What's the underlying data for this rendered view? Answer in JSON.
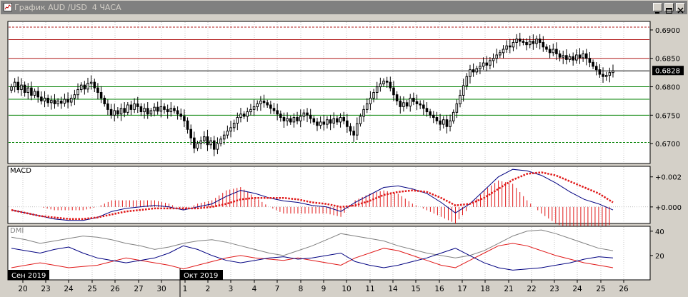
{
  "window": {
    "title": "График AUD /USD  4 ЧАСА"
  },
  "colors": {
    "background": "#ffffff",
    "candle": "#000000",
    "resistance": "#b01818",
    "support": "#008000",
    "current_price_line": "#000000",
    "macd_line": "#000080",
    "signal_line": "#e01818",
    "histogram": "#e01818",
    "dmi_adx": "#808080",
    "dmi_plus": "#e01818",
    "dmi_minus": "#000080"
  },
  "chart_data": [
    {
      "type": "candlestick",
      "pane": "price",
      "ylim": [
        0.6665,
        0.6915
      ],
      "y_ticks": [
        "0.6700",
        "0.6750",
        "0.6800",
        "0.6850",
        "0.6900"
      ],
      "current_price": "0.6828",
      "horizontal_levels": {
        "resistance": [
          0.6905,
          0.6883,
          0.685
        ],
        "support": [
          0.68,
          0.6778,
          0.675,
          0.6702
        ]
      },
      "closes": [
        0.68,
        0.6808,
        0.6795,
        0.6803,
        0.679,
        0.6798,
        0.6785,
        0.6792,
        0.6782,
        0.6775,
        0.678,
        0.6772,
        0.6776,
        0.677,
        0.6775,
        0.6771,
        0.6778,
        0.6773,
        0.678,
        0.6786,
        0.6795,
        0.6803,
        0.6796,
        0.6806,
        0.6808,
        0.6798,
        0.679,
        0.678,
        0.677,
        0.676,
        0.675,
        0.6758,
        0.6752,
        0.6762,
        0.6755,
        0.6768,
        0.676,
        0.677,
        0.6765,
        0.6756,
        0.6762,
        0.6752,
        0.6758,
        0.6764,
        0.6757,
        0.6765,
        0.676,
        0.6756,
        0.6762,
        0.6758,
        0.6752,
        0.6748,
        0.674,
        0.6725,
        0.671,
        0.6692,
        0.67,
        0.6705,
        0.6712,
        0.6698,
        0.6705,
        0.669,
        0.67,
        0.6708,
        0.6715,
        0.6722,
        0.6728,
        0.6736,
        0.6746,
        0.6752,
        0.6748,
        0.6756,
        0.676,
        0.6765,
        0.677,
        0.6775,
        0.6772,
        0.6768,
        0.6762,
        0.6758,
        0.6752,
        0.6746,
        0.674,
        0.6744,
        0.6738,
        0.6746,
        0.674,
        0.6748,
        0.6754,
        0.675,
        0.6744,
        0.6738,
        0.6732,
        0.6738,
        0.6734,
        0.6742,
        0.6736,
        0.6744,
        0.6738,
        0.6746,
        0.674,
        0.673,
        0.6722,
        0.6715,
        0.6735,
        0.6748,
        0.676,
        0.677,
        0.678,
        0.679,
        0.68,
        0.6805,
        0.681,
        0.6808,
        0.6798,
        0.6786,
        0.6775,
        0.6765,
        0.6772,
        0.6766,
        0.678,
        0.6774,
        0.677,
        0.6768,
        0.6762,
        0.6756,
        0.675,
        0.6746,
        0.674,
        0.6734,
        0.6742,
        0.673,
        0.674,
        0.6755,
        0.677,
        0.6785,
        0.6802,
        0.6818,
        0.683,
        0.6826,
        0.6832,
        0.6836,
        0.6842,
        0.6838,
        0.6846,
        0.685,
        0.6856,
        0.686,
        0.6866,
        0.6872,
        0.687,
        0.6878,
        0.6884,
        0.688,
        0.6878,
        0.6874,
        0.688,
        0.6876,
        0.6884,
        0.6878,
        0.687,
        0.6866,
        0.686,
        0.6866,
        0.6858,
        0.6852,
        0.6855,
        0.6848,
        0.6853,
        0.6847,
        0.6856,
        0.6851,
        0.6858,
        0.685,
        0.6843,
        0.6836,
        0.683,
        0.6822,
        0.6818,
        0.682,
        0.6825,
        0.6828
      ]
    },
    {
      "type": "line",
      "pane": "macd",
      "title": "MACD",
      "y_ticks": [
        "+0.002",
        "+0.000"
      ],
      "ylim": [
        -0.0011,
        0.0027
      ],
      "macd": [
        -0.0002,
        -0.0004,
        -0.0006,
        -0.0008,
        -0.0009,
        -0.0009,
        -0.0007,
        -0.0003,
        -0.0001,
        0.0,
        0.0001,
        0.0,
        -0.0002,
        0.0,
        0.0002,
        0.0007,
        0.0011,
        0.0009,
        0.0006,
        0.0004,
        0.0003,
        0.0001,
        0.0,
        -0.0003,
        0.0003,
        0.0008,
        0.0013,
        0.0014,
        0.0012,
        0.0009,
        0.0003,
        -0.0004,
        0.0002,
        0.0011,
        0.002,
        0.0025,
        0.0024,
        0.0021,
        0.0016,
        0.001,
        0.0005,
        0.0002,
        -0.0002
      ],
      "signal": [
        -0.0002,
        -0.0004,
        -0.0006,
        -0.0007,
        -0.0008,
        -0.0008,
        -0.0007,
        -0.0005,
        -0.0003,
        -0.0002,
        -0.0001,
        -0.0001,
        -0.0001,
        -0.0001,
        0.0,
        0.0002,
        0.0005,
        0.0006,
        0.0006,
        0.0006,
        0.0005,
        0.0003,
        0.0002,
        0.0,
        0.0001,
        0.0004,
        0.0008,
        0.001,
        0.0011,
        0.001,
        0.0006,
        0.0001,
        0.0002,
        0.0006,
        0.0012,
        0.0018,
        0.0022,
        0.0023,
        0.0021,
        0.0017,
        0.0013,
        0.0009,
        0.0003
      ]
    },
    {
      "type": "line",
      "pane": "dmi",
      "title": "DMI",
      "y_ticks": [
        "40",
        "20"
      ],
      "ylim": [
        0,
        44
      ],
      "adx": [
        35,
        33,
        30,
        32,
        34,
        36,
        35,
        33,
        30,
        28,
        25,
        27,
        30,
        32,
        33,
        31,
        28,
        25,
        22,
        20,
        24,
        28,
        33,
        38,
        36,
        34,
        32,
        28,
        25,
        22,
        20,
        18,
        20,
        24,
        30,
        36,
        40,
        41,
        38,
        34,
        30,
        26,
        24
      ],
      "di_plus": [
        10,
        12,
        14,
        12,
        10,
        11,
        12,
        15,
        18,
        16,
        14,
        12,
        9,
        12,
        15,
        18,
        20,
        18,
        17,
        16,
        18,
        16,
        14,
        12,
        18,
        22,
        26,
        24,
        20,
        16,
        12,
        10,
        16,
        22,
        28,
        30,
        28,
        24,
        20,
        17,
        14,
        12,
        10
      ],
      "di_minus": [
        26,
        24,
        22,
        25,
        27,
        22,
        18,
        16,
        14,
        16,
        18,
        22,
        28,
        25,
        20,
        16,
        14,
        16,
        18,
        19,
        17,
        18,
        20,
        22,
        15,
        12,
        10,
        12,
        15,
        18,
        22,
        26,
        20,
        14,
        10,
        8,
        9,
        10,
        12,
        14,
        17,
        19,
        18
      ]
    },
    {
      "type": "axis",
      "pane": "time",
      "x_tick_labels": [
        "20",
        "23",
        "24",
        "25",
        "26",
        "27",
        "30",
        "1",
        "2",
        "3",
        "4",
        "7",
        "8",
        "9",
        "10",
        "11",
        "14",
        "15",
        "16",
        "17",
        "18",
        "21",
        "22",
        "23",
        "24",
        "25",
        "26"
      ],
      "month_labels": [
        "Сен 2019",
        "Окт 2019"
      ]
    }
  ]
}
